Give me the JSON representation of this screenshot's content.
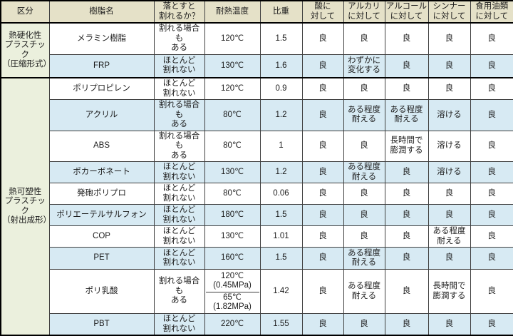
{
  "chart_data": {
    "type": "table",
    "headers": [
      "区分",
      "樹脂名",
      "落とすと\n割れるか？",
      "耐熱温度",
      "比重",
      "酸に\n対して",
      "アルカリ\nに対して",
      "アルコール\nに対して",
      "シンナー\nに対して",
      "食用油類\nに対して"
    ],
    "groups": [
      {
        "category": "熱硬化性\nプラスチック\n（圧縮形式）",
        "rows": [
          {
            "name": "メラミン樹脂",
            "crack": "割れる場合も\nある",
            "heat": [
              "120℃"
            ],
            "gravity": "1.5",
            "acid": "良",
            "alkali": "良",
            "alcohol": "良",
            "thinner": "良",
            "oil": "良",
            "shade": false
          },
          {
            "name": "FRP",
            "crack": "ほとんど\n割れない",
            "heat": [
              "130℃"
            ],
            "gravity": "1.6",
            "acid": "良",
            "alkali": "わずかに\n変化する",
            "alcohol": "良",
            "thinner": "良",
            "oil": "良",
            "shade": true
          }
        ]
      },
      {
        "category": "熱可塑性\nプラスチック\n（射出成形）",
        "rows": [
          {
            "name": "ポリプロピレン",
            "crack": "ほとんど\n割れない",
            "heat": [
              "120℃"
            ],
            "gravity": "0.9",
            "acid": "良",
            "alkali": "良",
            "alcohol": "良",
            "thinner": "良",
            "oil": "良",
            "shade": false
          },
          {
            "name": "アクリル",
            "crack": "割れる場合も\nある",
            "heat": [
              "80℃"
            ],
            "gravity": "1.2",
            "acid": "良",
            "alkali": "ある程度\n耐える",
            "alcohol": "ある程度\n耐える",
            "thinner": "溶ける",
            "oil": "良",
            "shade": true
          },
          {
            "name": "ABS",
            "crack": "割れる場合も\nある",
            "heat": [
              "80℃"
            ],
            "gravity": "1",
            "acid": "良",
            "alkali": "良",
            "alcohol": "長時間で\n膨潤する",
            "thinner": "溶ける",
            "oil": "良",
            "shade": false
          },
          {
            "name": "ポカーボネート",
            "crack": "ほとんど\n割れない",
            "heat": [
              "130℃"
            ],
            "gravity": "1.2",
            "acid": "良",
            "alkali": "ある程度\n耐える",
            "alcohol": "良",
            "thinner": "溶ける",
            "oil": "良",
            "shade": true
          },
          {
            "name": "発砲ポリプロ",
            "crack": "ほとんど\n割れない",
            "heat": [
              "80℃"
            ],
            "gravity": "0.06",
            "acid": "良",
            "alkali": "良",
            "alcohol": "良",
            "thinner": "良",
            "oil": "良",
            "shade": false
          },
          {
            "name": "ポリエーテルサルフォン",
            "crack": "ほとんど\n割れない",
            "heat": [
              "180℃"
            ],
            "gravity": "1.5",
            "acid": "良",
            "alkali": "良",
            "alcohol": "良",
            "thinner": "良",
            "oil": "良",
            "shade": true
          },
          {
            "name": "COP",
            "crack": "ほとんど\n割れない",
            "heat": [
              "130℃"
            ],
            "gravity": "1.01",
            "acid": "良",
            "alkali": "良",
            "alcohol": "良",
            "thinner": "ある程度\n耐える",
            "oil": "良",
            "shade": false
          },
          {
            "name": "PET",
            "crack": "ほとんど\n割れない",
            "heat": [
              "160℃"
            ],
            "gravity": "1.5",
            "acid": "良",
            "alkali": "ある程度\n耐える",
            "alcohol": "良",
            "thinner": "良",
            "oil": "良",
            "shade": true
          },
          {
            "name": "ポリ乳酸",
            "crack": "割れる場合も\nある",
            "heat": [
              "120℃\n(0.45MPa)",
              "65℃\n(1.82MPa)"
            ],
            "gravity": "1.42",
            "acid": "良",
            "alkali": "ある程度\n耐える",
            "alcohol": "良",
            "thinner": "長時間で\n膨潤する",
            "oil": "良",
            "shade": false
          },
          {
            "name": "PBT",
            "crack": "ほとんど\n割れない",
            "heat": [
              "220℃"
            ],
            "gravity": "1.55",
            "acid": "良",
            "alkali": "良",
            "alcohol": "良",
            "thinner": "良",
            "oil": "良",
            "shade": true
          }
        ]
      }
    ],
    "colors": {
      "header_bg": "#e5e1c8",
      "category_bg": "#ebf0dd",
      "row_white": "#ffffff",
      "row_blue": "#d7eaf3",
      "grid_line": "#3f3f3f",
      "frame_line": "#000000"
    }
  }
}
